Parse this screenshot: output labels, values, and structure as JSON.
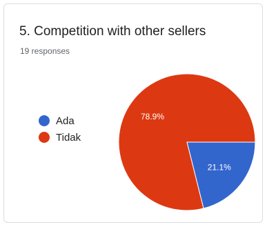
{
  "card": {
    "title": "5. Competition with other sellers",
    "responses": "19 responses"
  },
  "colors": {
    "Ada": "#3366cc",
    "Tidak": "#dc3912"
  },
  "chart_data": {
    "type": "pie",
    "categories": [
      "Ada",
      "Tidak"
    ],
    "values": [
      21.1,
      78.9
    ],
    "data_labels": [
      "21.1%",
      "78.9%"
    ],
    "legend": "left"
  }
}
